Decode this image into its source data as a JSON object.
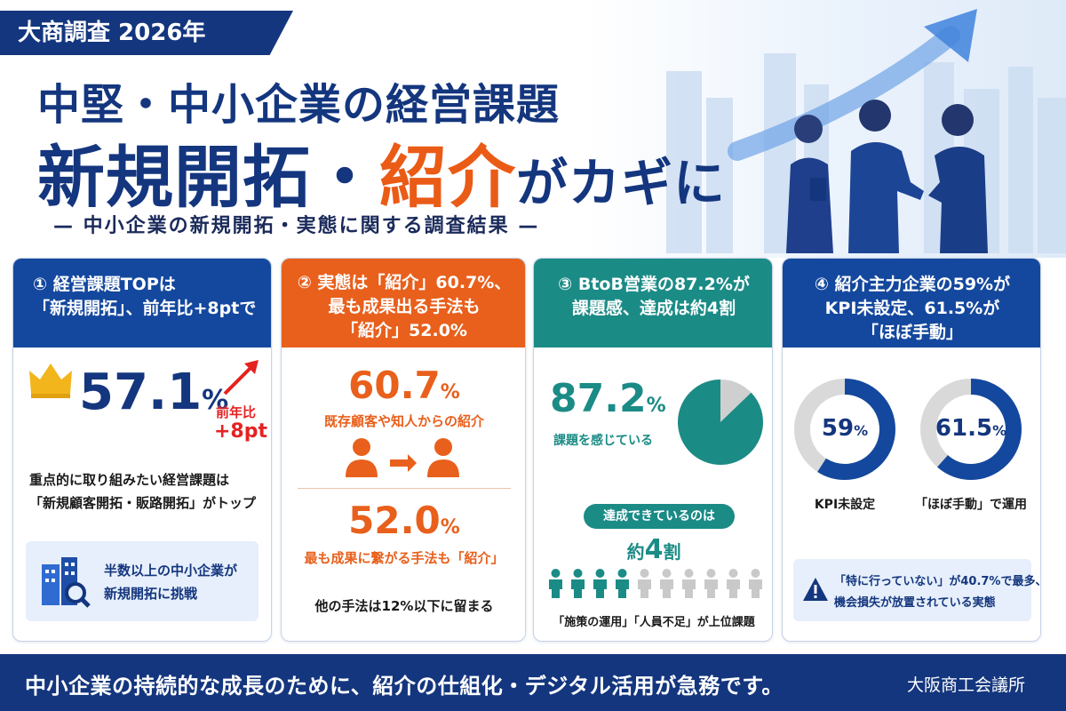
{
  "badge": "大商調査 2026年",
  "title": {
    "line1": "中堅・中小企業の経営課題",
    "line2_a": "新規開拓・",
    "line2_accent": "紹介",
    "line2_b": "がカギに"
  },
  "subtitle": "— 中小企業の新規開拓・実態に関する調査結果 —",
  "colors": {
    "navy": "#14367e",
    "orange": "#e8601c",
    "teal": "#1b8b86",
    "blue": "#14489e"
  },
  "card1": {
    "head": [
      "① 経営課題TOPは",
      "「新規開拓」、前年比+8ptで"
    ],
    "big_value": "57.1",
    "big_unit": "%",
    "change_label": "前年比",
    "change_value": "+8pt",
    "desc1": "重点的に取り組みたい経営課題は",
    "desc2": "「新規顧客開拓・販路開拓」がトップ",
    "box1": "半数以上の中小企業が",
    "box2": "新規開拓に挑戦",
    "icons": [
      "crown-icon",
      "up-arrow-icon",
      "building-search-icon"
    ]
  },
  "card2": {
    "head": [
      "② 実態は「紹介」60.7%、",
      "最も成果出る手法も",
      "「紹介」52.0%"
    ],
    "v1": "60.7",
    "v1_unit": "%",
    "v1_label": "既存顧客や知人からの紹介",
    "v2": "52.0",
    "v2_unit": "%",
    "v2_label": "最も成果に繋がる手法も「紹介」",
    "note": "他の手法は12%以下に留まる",
    "icons": [
      "person-to-person-icon"
    ]
  },
  "card3": {
    "head": [
      "③ BtoB営業の87.2%が",
      "課題感、達成は約4割"
    ],
    "value": "87.2",
    "unit": "%",
    "value_label": "課題を感じている",
    "pill": "達成できているのは",
    "approx_prefix": "約",
    "approx_num": "4",
    "approx_suffix": "割",
    "people_total": 10,
    "people_filled": 4,
    "bottom": "「施策の運用」「人員不足」が上位課題",
    "pie_fraction": 0.872
  },
  "card4": {
    "head": [
      "④ 紹介主力企業の59%が",
      "KPI未設定、61.5%が",
      "「ほぼ手動」"
    ],
    "d1_value": "59",
    "d1_unit": "%",
    "d1_fraction": 0.59,
    "d1_label": "KPI未設定",
    "d2_value": "61.5",
    "d2_unit": "%",
    "d2_fraction": 0.615,
    "d2_label": "「ほぼ手動」で運用",
    "alert1": "「特に行っていない」が40.7%で最多、",
    "alert2": "機会損失が放置されている実態",
    "icons": [
      "warning-icon"
    ]
  },
  "footer": {
    "message": "中小企業の持続的な成長のために、紹介の仕組化・デジタル活用が急務です。",
    "org": "大阪商工会議所"
  }
}
